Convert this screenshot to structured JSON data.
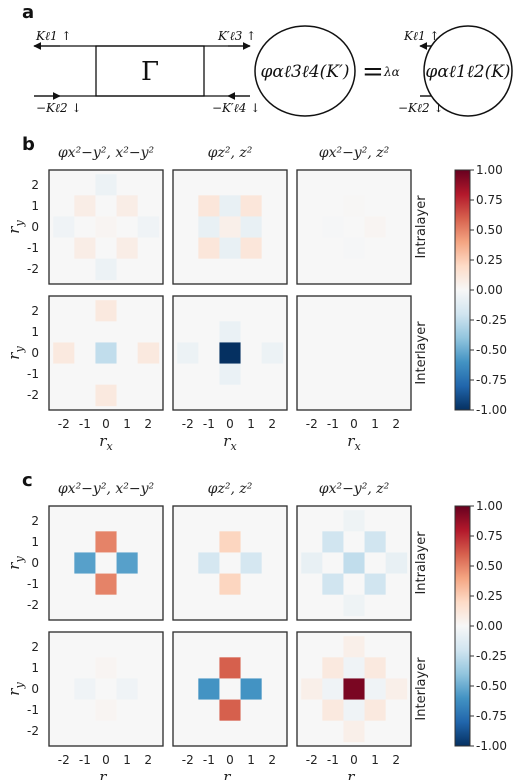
{
  "panels": {
    "a": "a",
    "b": "b",
    "c": "c"
  },
  "diagram": {
    "gamma": "Γ",
    "equals": "=",
    "lambda": "λα",
    "left_top": "Kℓ1 ↑",
    "left_bottom": "−Kℓ2 ↓",
    "mid_top": "K′ℓ3 ↑",
    "mid_bottom": "−K′ℓ4 ↓",
    "right_top": "Kℓ1 ↑",
    "right_bottom": "−Kℓ2 ↓",
    "phi_left": "φαℓ3ℓ4(K′)",
    "phi_right": "φαℓ1ℓ2(K)"
  },
  "colors": {
    "panel_bg": "#f7f7f7",
    "frame": "#333333"
  },
  "chart_data": [
    {
      "type": "heatmap",
      "panel": "b",
      "columns": [
        "φx²−y², x²−y²",
        "φz², z²",
        "φx²−y², z²"
      ],
      "rows": [
        "Intralayer",
        "Interlayer"
      ],
      "xlabel": "rx",
      "ylabel": "ry",
      "x": [
        -2,
        -1,
        0,
        1,
        2
      ],
      "y": [
        2,
        1,
        0,
        -1,
        -2
      ],
      "xticks": [
        "-2",
        "-1",
        "0",
        "1",
        "2"
      ],
      "yticks": [
        "2",
        "1",
        "0",
        "-1",
        "-2"
      ],
      "colorbar": {
        "cmap": "RdBu_r",
        "range": [
          -1,
          1
        ],
        "ticks": [
          "1.00",
          "0.75",
          "0.50",
          "0.25",
          "0.00",
          "-0.25",
          "-0.50",
          "-0.75",
          "-1.00"
        ]
      },
      "matrices": [
        [
          [
            [
              0,
              0,
              -0.06,
              0,
              0
            ],
            [
              0,
              0.07,
              0,
              0.07,
              0
            ],
            [
              -0.04,
              0,
              0.02,
              0,
              -0.04
            ],
            [
              0,
              0.07,
              0,
              0.07,
              0
            ],
            [
              0,
              0,
              -0.06,
              0,
              0
            ]
          ],
          [
            [
              0,
              0,
              0,
              0,
              0
            ],
            [
              0,
              0.12,
              -0.08,
              0.12,
              0
            ],
            [
              0,
              -0.08,
              0.06,
              -0.08,
              0
            ],
            [
              0,
              0.12,
              -0.08,
              0.12,
              0
            ],
            [
              0,
              0,
              0,
              0,
              0
            ]
          ],
          [
            [
              0,
              0,
              0,
              0,
              0
            ],
            [
              0,
              0,
              0.01,
              0,
              0
            ],
            [
              0,
              -0.01,
              0,
              0.02,
              0
            ],
            [
              0,
              0,
              -0.01,
              0,
              0
            ],
            [
              0,
              0,
              0,
              0,
              0
            ]
          ]
        ],
        [
          [
            [
              0,
              0,
              0.1,
              0,
              0
            ],
            [
              0,
              0,
              0,
              0,
              0
            ],
            [
              0.1,
              0,
              -0.25,
              0,
              0.1
            ],
            [
              0,
              0,
              0,
              0,
              0
            ],
            [
              0,
              0,
              0.1,
              0,
              0
            ]
          ],
          [
            [
              0,
              0,
              0,
              0,
              0
            ],
            [
              0,
              0,
              -0.07,
              0,
              0
            ],
            [
              -0.06,
              0,
              -1.0,
              0,
              -0.06
            ],
            [
              0,
              0,
              -0.07,
              0,
              0
            ],
            [
              0,
              0,
              0,
              0,
              0
            ]
          ],
          [
            [
              0,
              0,
              0,
              0,
              0
            ],
            [
              0,
              0,
              0,
              0,
              0
            ],
            [
              0,
              0,
              0,
              0,
              0
            ],
            [
              0,
              0,
              0,
              0,
              0
            ],
            [
              0,
              0,
              0,
              0,
              0
            ]
          ]
        ]
      ]
    },
    {
      "type": "heatmap",
      "panel": "c",
      "columns": [
        "φx²−y², x²−y²",
        "φz², z²",
        "φx²−y², z²"
      ],
      "rows": [
        "Intralayer",
        "Interlayer"
      ],
      "xlabel": "rx",
      "ylabel": "ry",
      "x": [
        -2,
        -1,
        0,
        1,
        2
      ],
      "y": [
        2,
        1,
        0,
        -1,
        -2
      ],
      "xticks": [
        "-2",
        "-1",
        "0",
        "1",
        "2"
      ],
      "yticks": [
        "2",
        "1",
        "0",
        "-1",
        "-2"
      ],
      "colorbar": {
        "cmap": "RdBu_r",
        "range": [
          -1,
          1
        ],
        "ticks": [
          "1.00",
          "0.75",
          "0.50",
          "0.25",
          "0.00",
          "-0.25",
          "-0.50",
          "-0.75",
          "-1.00"
        ]
      },
      "matrices": [
        [
          [
            [
              0,
              0,
              0,
              0,
              0
            ],
            [
              0,
              0,
              0.5,
              0,
              0
            ],
            [
              0,
              -0.55,
              0,
              -0.55,
              0
            ],
            [
              0,
              0,
              0.5,
              0,
              0
            ],
            [
              0,
              0,
              0,
              0,
              0
            ]
          ],
          [
            [
              0,
              0,
              0,
              0,
              0
            ],
            [
              0,
              0,
              0.22,
              0,
              0
            ],
            [
              0,
              -0.18,
              0,
              -0.18,
              0
            ],
            [
              0,
              0,
              0.22,
              0,
              0
            ],
            [
              0,
              0,
              0,
              0,
              0
            ]
          ],
          [
            [
              0,
              0,
              -0.05,
              0,
              0
            ],
            [
              0,
              -0.2,
              0,
              -0.2,
              0
            ],
            [
              -0.08,
              0,
              -0.25,
              0,
              -0.08
            ],
            [
              0,
              -0.2,
              0,
              -0.2,
              0
            ],
            [
              0,
              0,
              -0.05,
              0,
              0
            ]
          ]
        ],
        [
          [
            [
              0,
              0,
              0,
              0,
              0
            ],
            [
              0,
              0,
              0.02,
              0,
              0
            ],
            [
              0,
              -0.04,
              0,
              -0.04,
              0
            ],
            [
              0,
              0,
              0.02,
              0,
              0
            ],
            [
              0,
              0,
              0,
              0,
              0
            ]
          ],
          [
            [
              0,
              0,
              0,
              0,
              0
            ],
            [
              0,
              0,
              0.6,
              0,
              0
            ],
            [
              0,
              -0.6,
              0,
              -0.6,
              0
            ],
            [
              0,
              0,
              0.6,
              0,
              0
            ],
            [
              0,
              0,
              0,
              0,
              0
            ]
          ],
          [
            [
              0,
              0,
              0.06,
              0,
              0
            ],
            [
              0,
              0.1,
              -0.04,
              0.1,
              0
            ],
            [
              0.06,
              -0.04,
              0.95,
              -0.04,
              0.06
            ],
            [
              0,
              0.1,
              -0.04,
              0.1,
              0
            ],
            [
              0,
              0,
              0.06,
              0,
              0
            ]
          ]
        ]
      ]
    }
  ]
}
